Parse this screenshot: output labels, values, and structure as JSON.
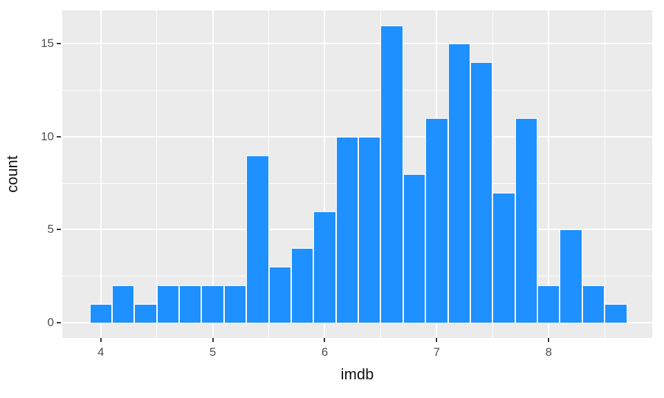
{
  "figure": {
    "background": "#FFFFFF",
    "panel_background": "#EBEBEB",
    "gridline_color": "#FFFFFF",
    "bar_fill": "#1E90FF",
    "bar_stroke": "#FFFFFF",
    "tick_mark_color": "#333333",
    "axis_text_color": "#4D4D4D",
    "axis_title_color": "#111111"
  },
  "chart_data": {
    "type": "bar",
    "subtype": "histogram",
    "title": "",
    "xlabel": "imdb",
    "ylabel": "count",
    "binwidth": 0.2,
    "bin_centers": [
      4.0,
      4.2,
      4.4,
      4.6,
      4.8,
      5.0,
      5.2,
      5.4,
      5.6,
      5.8,
      6.0,
      6.2,
      6.4,
      6.6,
      6.8,
      7.0,
      7.2,
      7.4,
      7.6,
      7.8,
      8.0,
      8.2,
      8.4,
      8.6
    ],
    "values": [
      1,
      2,
      1,
      2,
      2,
      2,
      2,
      9,
      3,
      4,
      6,
      10,
      10,
      16,
      8,
      11,
      15,
      14,
      7,
      11,
      2,
      5,
      2,
      1
    ],
    "x_tick_labels": [
      "4",
      "5",
      "6",
      "7",
      "8"
    ],
    "x_ticks": [
      4,
      5,
      6,
      7,
      8
    ],
    "y_tick_labels": [
      "0",
      "5",
      "10",
      "15"
    ],
    "y_ticks": [
      0,
      5,
      10,
      15
    ],
    "x_minor_breaks": [
      4.5,
      5.5,
      6.5,
      7.5,
      8.5
    ],
    "y_minor_breaks": [
      2.5,
      7.5,
      12.5
    ],
    "xlim": [
      3.656,
      8.925
    ],
    "ylim": [
      -0.82,
      16.8
    ],
    "grid": true,
    "legend_position": "none"
  }
}
